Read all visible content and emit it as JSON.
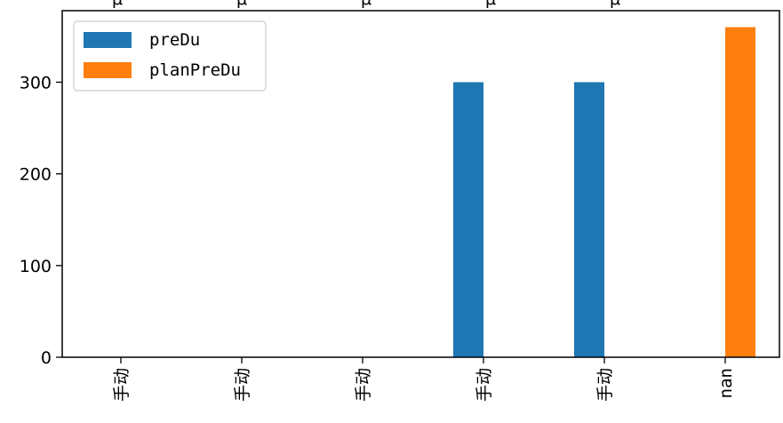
{
  "chart_data": {
    "type": "bar",
    "categories": [
      "手动",
      "手动",
      "手动",
      "手动",
      "手动",
      "nan"
    ],
    "series": [
      {
        "name": "preDu",
        "color": "#1f77b4",
        "values": [
          0,
          0,
          0,
          300,
          300,
          0
        ]
      },
      {
        "name": "planPreDu",
        "color": "#ff7f0e",
        "values": [
          0,
          0,
          0,
          0,
          0,
          360
        ]
      }
    ],
    "yticks": [
      0,
      100,
      200,
      300
    ],
    "ylim": [
      0,
      378
    ],
    "legend_position": "top-left",
    "grid": false,
    "top_fragments": [
      "μ",
      "μ",
      "μ",
      "μ",
      "μ"
    ]
  }
}
